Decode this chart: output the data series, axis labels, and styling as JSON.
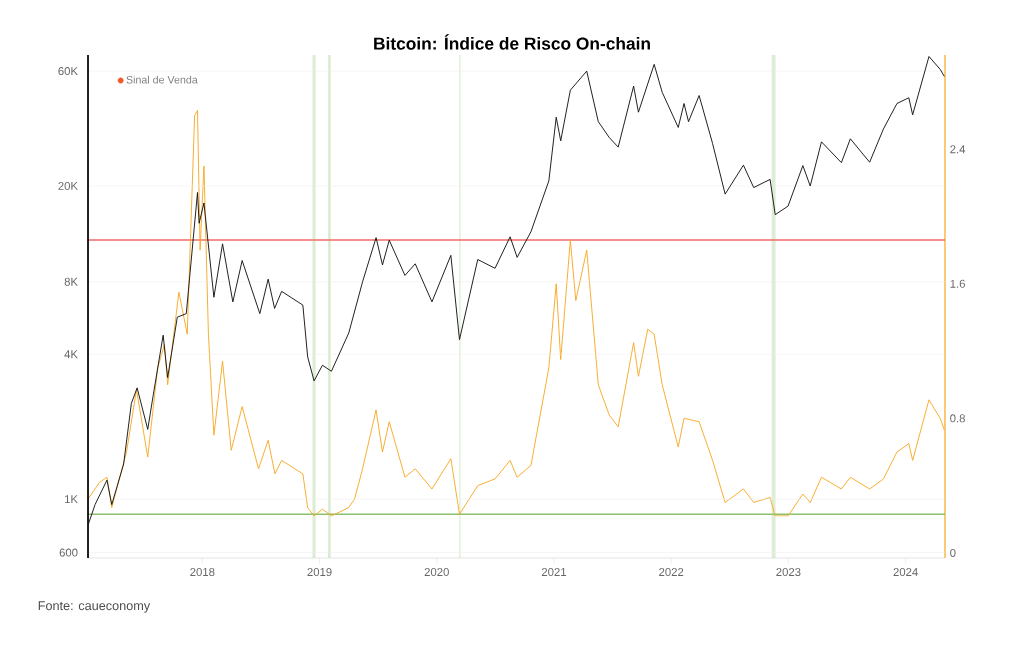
{
  "chart_data": {
    "type": "line",
    "title": "Bitcoin: Índice de Risco On-chain",
    "annotations": [
      "Fonte: caueconomy"
    ],
    "series": [
      {
        "axis": "y2",
        "color": "#f7a823",
        "x": [
          "2017-01-10",
          "2017-02-15",
          "2017-03-10",
          "2017-03-25",
          "2017-05-10",
          "2017-06-10",
          "2017-07-15",
          "2017-08-15",
          "2017-09-05",
          "2017-09-15",
          "2017-10-20",
          "2017-11-15",
          "2017-12-08",
          "2017-12-17",
          "2017-12-25",
          "2018-01-06",
          "2018-01-20",
          "2018-02-06",
          "2018-03-05",
          "2018-04-01",
          "2018-05-05",
          "2018-06-25",
          "2018-07-25",
          "2018-08-15",
          "2018-09-05",
          "2018-11-10",
          "2018-11-25",
          "2018-12-15",
          "2019-01-10",
          "2019-02-07",
          "2019-04-02",
          "2019-04-20",
          "2019-05-15",
          "2019-06-26",
          "2019-07-16",
          "2019-08-06",
          "2019-09-24",
          "2019-10-26",
          "2019-12-17",
          "2020-02-14",
          "2020-03-12",
          "2020-05-08",
          "2020-07-01",
          "2020-08-17",
          "2020-09-08",
          "2020-10-21",
          "2020-12-16",
          "2021-01-08",
          "2021-01-22",
          "2021-02-21",
          "2021-03-10",
          "2021-04-13",
          "2021-05-19",
          "2021-06-22",
          "2021-07-20",
          "2021-09-06",
          "2021-09-21",
          "2021-10-20",
          "2021-11-09",
          "2021-12-04",
          "2022-01-23",
          "2022-02-10",
          "2022-03-29",
          "2022-05-10",
          "2022-06-18",
          "2022-08-14",
          "2022-09-15",
          "2022-11-05",
          "2022-11-21",
          "2022-12-31",
          "2023-02-15",
          "2023-03-10",
          "2023-04-14",
          "2023-06-15",
          "2023-07-13",
          "2023-09-11",
          "2023-10-24",
          "2023-12-05",
          "2024-01-11",
          "2024-01-23",
          "2024-03-14",
          "2024-04-18",
          "2024-05-01"
        ],
        "values": [
          0.32,
          0.42,
          0.45,
          0.27,
          0.6,
          0.97,
          0.57,
          1.1,
          1.24,
          1.0,
          1.55,
          1.3,
          2.6,
          2.63,
          1.8,
          2.3,
          1.3,
          0.7,
          1.14,
          0.61,
          0.87,
          0.5,
          0.67,
          0.47,
          0.55,
          0.47,
          0.27,
          0.22,
          0.26,
          0.22,
          0.27,
          0.32,
          0.5,
          0.85,
          0.6,
          0.78,
          0.45,
          0.5,
          0.38,
          0.56,
          0.23,
          0.4,
          0.44,
          0.55,
          0.45,
          0.52,
          1.1,
          1.6,
          1.15,
          1.86,
          1.5,
          1.8,
          1.0,
          0.82,
          0.75,
          1.25,
          1.05,
          1.33,
          1.3,
          1.0,
          0.63,
          0.8,
          0.78,
          0.55,
          0.3,
          0.38,
          0.3,
          0.33,
          0.22,
          0.22,
          0.35,
          0.3,
          0.45,
          0.38,
          0.45,
          0.38,
          0.44,
          0.6,
          0.65,
          0.55,
          0.91,
          0.8,
          0.73
        ]
      },
      {
        "color": "#111111",
        "x": [
          "2017-01-10",
          "2017-02-01",
          "2017-03-10",
          "2017-03-25",
          "2017-05-01",
          "2017-05-25",
          "2017-06-12",
          "2017-07-15",
          "2017-08-01",
          "2017-09-01",
          "2017-09-15",
          "2017-10-15",
          "2017-11-12",
          "2017-12-17",
          "2017-12-22",
          "2018-01-06",
          "2018-02-06",
          "2018-03-05",
          "2018-04-06",
          "2018-05-05",
          "2018-06-29",
          "2018-07-25",
          "2018-08-14",
          "2018-09-05",
          "2018-11-10",
          "2018-11-25",
          "2018-12-15",
          "2019-01-10",
          "2019-02-07",
          "2019-04-02",
          "2019-05-15",
          "2019-06-26",
          "2019-07-16",
          "2019-08-06",
          "2019-09-24",
          "2019-10-26",
          "2019-12-17",
          "2020-02-14",
          "2020-03-12",
          "2020-05-08",
          "2020-07-01",
          "2020-08-17",
          "2020-09-08",
          "2020-10-21",
          "2020-12-16",
          "2021-01-08",
          "2021-01-22",
          "2021-02-21",
          "2021-04-13",
          "2021-05-19",
          "2021-06-22",
          "2021-07-20",
          "2021-09-06",
          "2021-09-21",
          "2021-11-09",
          "2021-12-04",
          "2022-01-23",
          "2022-02-10",
          "2022-02-24",
          "2022-03-29",
          "2022-05-10",
          "2022-06-18",
          "2022-08-14",
          "2022-09-15",
          "2022-11-05",
          "2022-11-21",
          "2022-12-31",
          "2023-02-15",
          "2023-03-10",
          "2023-04-14",
          "2023-06-15",
          "2023-07-13",
          "2023-09-11",
          "2023-10-24",
          "2023-12-05",
          "2024-01-11",
          "2024-01-23",
          "2024-03-14",
          "2024-04-18",
          "2024-05-01"
        ],
        "values": [
          780,
          950,
          1200,
          950,
          1400,
          2500,
          2900,
          1950,
          2700,
          4800,
          3200,
          5700,
          5900,
          18800,
          14000,
          17000,
          6900,
          11500,
          6600,
          9800,
          5900,
          8200,
          6200,
          7300,
          6400,
          3900,
          3100,
          3600,
          3400,
          4900,
          8000,
          12200,
          9400,
          11900,
          8500,
          9500,
          6600,
          10300,
          4600,
          9900,
          9100,
          12300,
          10100,
          12900,
          21000,
          38600,
          30800,
          50000,
          60000,
          37000,
          31800,
          29000,
          52000,
          40500,
          64000,
          49000,
          35000,
          44000,
          37000,
          47500,
          30000,
          18500,
          24400,
          19700,
          21300,
          15200,
          16500,
          24300,
          20000,
          30500,
          25000,
          31400,
          25100,
          34500,
          44000,
          46500,
          39500,
          69000,
          61000,
          57000
        ]
      },
      {
        "type": "scatter",
        "name": "Sinal de Venda",
        "color": "#f05a28"
      }
    ],
    "xlim": [
      "2017-01-10",
      "2024-05-03"
    ],
    "xticks": [
      {
        "value": "2018-01-01",
        "label": "2018"
      },
      {
        "value": "2019-01-01",
        "label": "2019"
      },
      {
        "value": "2020-01-01",
        "label": "2020"
      },
      {
        "value": "2021-01-01",
        "label": "2021"
      },
      {
        "value": "2022-01-01",
        "label": "2022"
      },
      {
        "value": "2023-01-01",
        "label": "2023"
      },
      {
        "value": "2024-01-01",
        "label": "2024"
      }
    ],
    "ylim": [
      570,
      70000
    ],
    "yticks": [
      600,
      {
        "value": 1000,
        "label": "1K"
      },
      {
        "value": 4000,
        "label": "4K"
      },
      {
        "value": 8000,
        "label": "8K"
      },
      {
        "value": 20000,
        "label": "20K"
      },
      {
        "value": 60000,
        "label": "60K"
      }
    ],
    "y2lim": [
      -0.03,
      2.96
    ],
    "y2ticks": [
      0,
      0.8,
      1.6,
      2.4
    ],
    "log": "y",
    "grid": "y",
    "legend": "top left",
    "line_style": "solid",
    "ref_lines": [
      {
        "axis": "y2",
        "value": 1.86,
        "color": "#f26b6b"
      },
      {
        "axis": "y2",
        "value": 0.23,
        "color": "#8cc06a"
      }
    ],
    "bands": [
      {
        "axis": "x",
        "from": "2018-12-10",
        "to": "2018-12-20",
        "color": "#dcedd4"
      },
      {
        "axis": "x",
        "from": "2019-01-27",
        "to": "2019-02-05",
        "color": "#dcedd4"
      },
      {
        "axis": "x",
        "from": "2020-03-11",
        "to": "2020-03-15",
        "color": "#dcedd4"
      },
      {
        "axis": "x",
        "from": "2022-11-10",
        "to": "2022-11-22",
        "color": "#dcedd4"
      }
    ]
  }
}
